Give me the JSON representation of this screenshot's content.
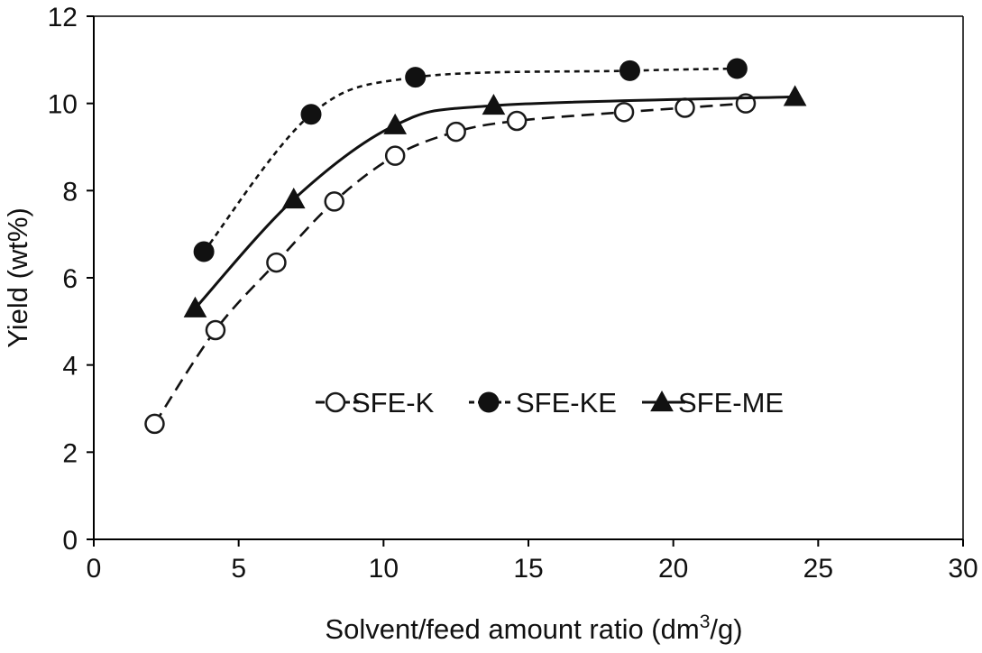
{
  "chart_data": {
    "type": "line",
    "xlabel_main": "Solvent/feed amount ratio (dm",
    "xlabel_sup": "3",
    "xlabel_tail": "/g)",
    "ylabel": "Yield (wt%)",
    "xlim": [
      0,
      30
    ],
    "ylim": [
      0,
      12
    ],
    "x_ticks": [
      0,
      5,
      10,
      15,
      20,
      25,
      30
    ],
    "y_ticks": [
      0,
      2,
      4,
      6,
      8,
      10,
      12
    ],
    "grid": false,
    "legend_position": "center",
    "series": [
      {
        "name": "SFE-K",
        "marker": "open-circle",
        "line_style": "long-dashed",
        "points": [
          {
            "x": 2.1,
            "y": 2.65
          },
          {
            "x": 4.2,
            "y": 4.8
          },
          {
            "x": 6.3,
            "y": 6.35
          },
          {
            "x": 8.3,
            "y": 7.75
          },
          {
            "x": 10.4,
            "y": 8.8
          },
          {
            "x": 12.5,
            "y": 9.35
          },
          {
            "x": 14.6,
            "y": 9.6
          },
          {
            "x": 18.3,
            "y": 9.8
          },
          {
            "x": 20.4,
            "y": 9.9
          },
          {
            "x": 22.5,
            "y": 10.0
          }
        ]
      },
      {
        "name": "SFE-KE",
        "marker": "filled-circle",
        "line_style": "short-dashed",
        "points": [
          {
            "x": 3.8,
            "y": 6.6
          },
          {
            "x": 7.5,
            "y": 9.75
          },
          {
            "x": 11.1,
            "y": 10.6
          },
          {
            "x": 18.5,
            "y": 10.75
          },
          {
            "x": 22.2,
            "y": 10.8
          }
        ]
      },
      {
        "name": "SFE-ME",
        "marker": "filled-triangle",
        "line_style": "solid",
        "points": [
          {
            "x": 3.5,
            "y": 5.3
          },
          {
            "x": 6.9,
            "y": 7.8
          },
          {
            "x": 10.4,
            "y": 9.5
          },
          {
            "x": 13.8,
            "y": 9.95
          },
          {
            "x": 24.2,
            "y": 10.15
          }
        ]
      }
    ]
  }
}
